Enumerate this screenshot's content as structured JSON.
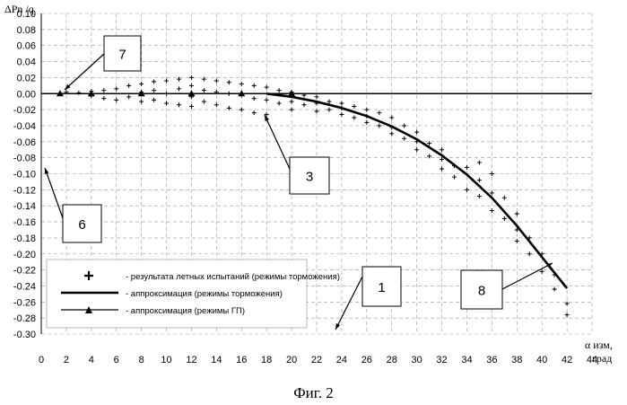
{
  "caption": "Фиг. 2",
  "chart_data": {
    "type": "scatter",
    "y_axis_title": "ΔPn /q",
    "x_axis_title_line1": "α изм,",
    "x_axis_title_line2": "град",
    "xlim": [
      0,
      44
    ],
    "ylim": [
      -0.3,
      0.1
    ],
    "x_ticks": [
      "0",
      "2",
      "4",
      "6",
      "8",
      "10",
      "12",
      "14",
      "16",
      "18",
      "20",
      "22",
      "24",
      "26",
      "28",
      "30",
      "32",
      "34",
      "36",
      "38",
      "40",
      "42",
      "44"
    ],
    "y_ticks": [
      "0.10",
      "0.08",
      "0.06",
      "0.04",
      "0.02",
      "0.00",
      "-0.02",
      "-0.04",
      "-0.06",
      "-0.08",
      "-0.10",
      "-0.12",
      "-0.14",
      "-0.16",
      "-0.18",
      "-0.20",
      "-0.22",
      "-0.24",
      "-0.26",
      "-0.28",
      "-0.30"
    ],
    "grid": true,
    "legend_position": "bottom-left",
    "legend": [
      {
        "marker": "plus",
        "label": "- результата летных испытаний (режимы торможения)"
      },
      {
        "marker": "line",
        "label": "- аппроксимация (режимы торможения)"
      },
      {
        "marker": "triangle-line",
        "label": "- аппроксимация (режимы ГП)"
      }
    ],
    "series": [
      {
        "marker": "line",
        "x": [
          18,
          20,
          22,
          24,
          26,
          28,
          30,
          32,
          34,
          36,
          38,
          40,
          42
        ],
        "y": [
          0.0,
          -0.004,
          -0.01,
          -0.018,
          -0.028,
          -0.041,
          -0.057,
          -0.077,
          -0.101,
          -0.13,
          -0.165,
          -0.204,
          -0.243
        ]
      },
      {
        "marker": "triangle-line",
        "x": [
          1.5,
          4,
          8,
          12,
          16,
          20
        ],
        "y": [
          0.0,
          0.0,
          0.0,
          0.0,
          0.0,
          0.0
        ]
      },
      {
        "marker": "plus",
        "x": [
          2,
          3,
          4,
          4,
          5,
          5,
          6,
          6,
          7,
          7,
          8,
          8,
          8,
          9,
          9,
          9,
          10,
          10,
          10,
          11,
          11,
          11,
          12,
          12,
          12,
          12,
          13,
          13,
          13,
          14,
          14,
          14,
          15,
          15,
          15,
          16,
          16,
          16,
          17,
          17,
          17,
          18,
          18,
          18,
          19,
          19,
          20,
          20,
          20,
          21,
          21,
          22,
          22,
          22,
          23,
          23,
          24,
          24,
          24,
          25,
          25,
          26,
          26,
          26,
          27,
          27,
          28,
          28,
          28,
          29,
          29,
          30,
          30,
          30,
          31,
          31,
          32,
          32,
          32,
          33,
          33,
          34,
          34,
          35,
          35,
          35,
          36,
          36,
          36,
          37,
          37,
          38,
          38,
          38,
          39,
          39,
          40,
          40,
          41,
          41,
          42,
          42
        ],
        "y": [
          0.002,
          0.001,
          0.003,
          -0.003,
          0.004,
          -0.006,
          0.006,
          -0.008,
          0.01,
          -0.004,
          0.012,
          0.002,
          -0.01,
          0.015,
          0.004,
          -0.008,
          0.016,
          0.0,
          -0.012,
          0.018,
          0.006,
          -0.014,
          0.02,
          0.01,
          -0.004,
          -0.016,
          0.018,
          0.004,
          -0.01,
          0.016,
          0.002,
          -0.014,
          0.014,
          0.0,
          -0.018,
          0.012,
          -0.002,
          -0.02,
          0.01,
          -0.006,
          -0.024,
          0.008,
          -0.008,
          -0.026,
          0.004,
          -0.012,
          0.002,
          -0.01,
          -0.02,
          -0.002,
          -0.014,
          -0.004,
          -0.012,
          -0.022,
          -0.01,
          -0.02,
          -0.012,
          -0.018,
          -0.026,
          -0.016,
          -0.03,
          -0.02,
          -0.028,
          -0.036,
          -0.024,
          -0.04,
          -0.03,
          -0.042,
          -0.05,
          -0.04,
          -0.056,
          -0.048,
          -0.06,
          -0.07,
          -0.062,
          -0.078,
          -0.07,
          -0.082,
          -0.094,
          -0.09,
          -0.104,
          -0.092,
          -0.12,
          -0.086,
          -0.108,
          -0.128,
          -0.1,
          -0.124,
          -0.146,
          -0.13,
          -0.156,
          -0.15,
          -0.17,
          -0.184,
          -0.18,
          -0.2,
          -0.2,
          -0.222,
          -0.226,
          -0.244,
          -0.262,
          -0.276
        ]
      }
    ],
    "callouts": [
      {
        "label": "7"
      },
      {
        "label": "3"
      },
      {
        "label": "6"
      },
      {
        "label": "1"
      },
      {
        "label": "8"
      }
    ]
  }
}
